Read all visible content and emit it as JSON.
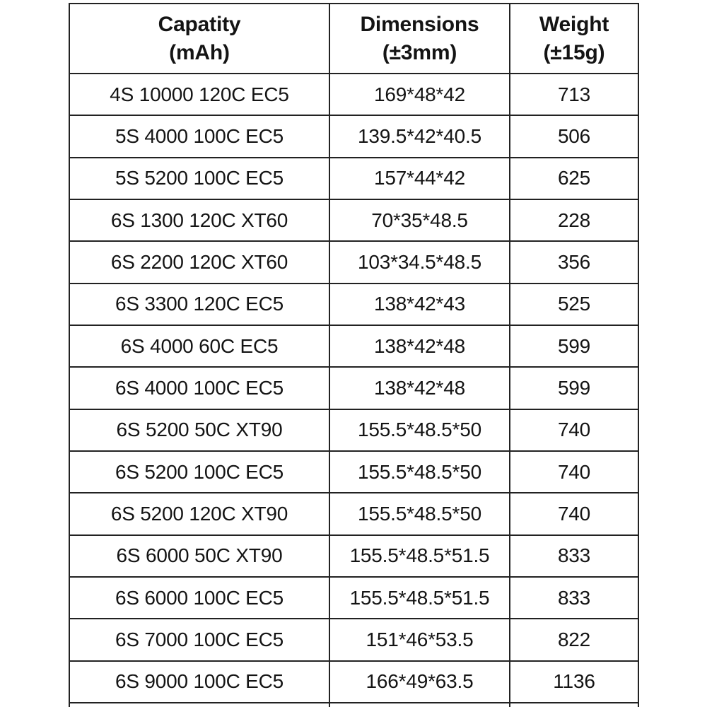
{
  "table": {
    "columns": [
      {
        "line1": "Capatity",
        "line2": "(mAh)"
      },
      {
        "line1": "Dimensions",
        "line2": "(±3mm)"
      },
      {
        "line1": "Weight",
        "line2": "(±15g)"
      }
    ],
    "rows": [
      {
        "capacity": "4S 10000 120C EC5",
        "dimensions": "169*48*42",
        "weight": "713"
      },
      {
        "capacity": "5S 4000 100C EC5",
        "dimensions": "139.5*42*40.5",
        "weight": "506"
      },
      {
        "capacity": "5S 5200 100C EC5",
        "dimensions": "157*44*42",
        "weight": "625"
      },
      {
        "capacity": "6S 1300 120C XT60",
        "dimensions": "70*35*48.5",
        "weight": "228"
      },
      {
        "capacity": "6S 2200 120C XT60",
        "dimensions": "103*34.5*48.5",
        "weight": "356"
      },
      {
        "capacity": "6S 3300 120C EC5",
        "dimensions": "138*42*43",
        "weight": "525"
      },
      {
        "capacity": "6S 4000 60C EC5",
        "dimensions": "138*42*48",
        "weight": "599"
      },
      {
        "capacity": "6S 4000 100C EC5",
        "dimensions": "138*42*48",
        "weight": "599"
      },
      {
        "capacity": "6S 5200 50C XT90",
        "dimensions": "155.5*48.5*50",
        "weight": "740"
      },
      {
        "capacity": "6S 5200 100C EC5",
        "dimensions": "155.5*48.5*50",
        "weight": "740"
      },
      {
        "capacity": "6S 5200 120C XT90",
        "dimensions": "155.5*48.5*50",
        "weight": "740"
      },
      {
        "capacity": "6S 6000 50C XT90",
        "dimensions": "155.5*48.5*51.5",
        "weight": "833"
      },
      {
        "capacity": "6S 6000 100C EC5",
        "dimensions": "155.5*48.5*51.5",
        "weight": "833"
      },
      {
        "capacity": "6S 7000 100C EC5",
        "dimensions": "151*46*53.5",
        "weight": "822"
      },
      {
        "capacity": "6S 9000 100C EC5",
        "dimensions": "166*49*63.5",
        "weight": "1136"
      }
    ]
  },
  "colors": {
    "border": "#222222",
    "text": "#141414",
    "background": "#ffffff"
  }
}
